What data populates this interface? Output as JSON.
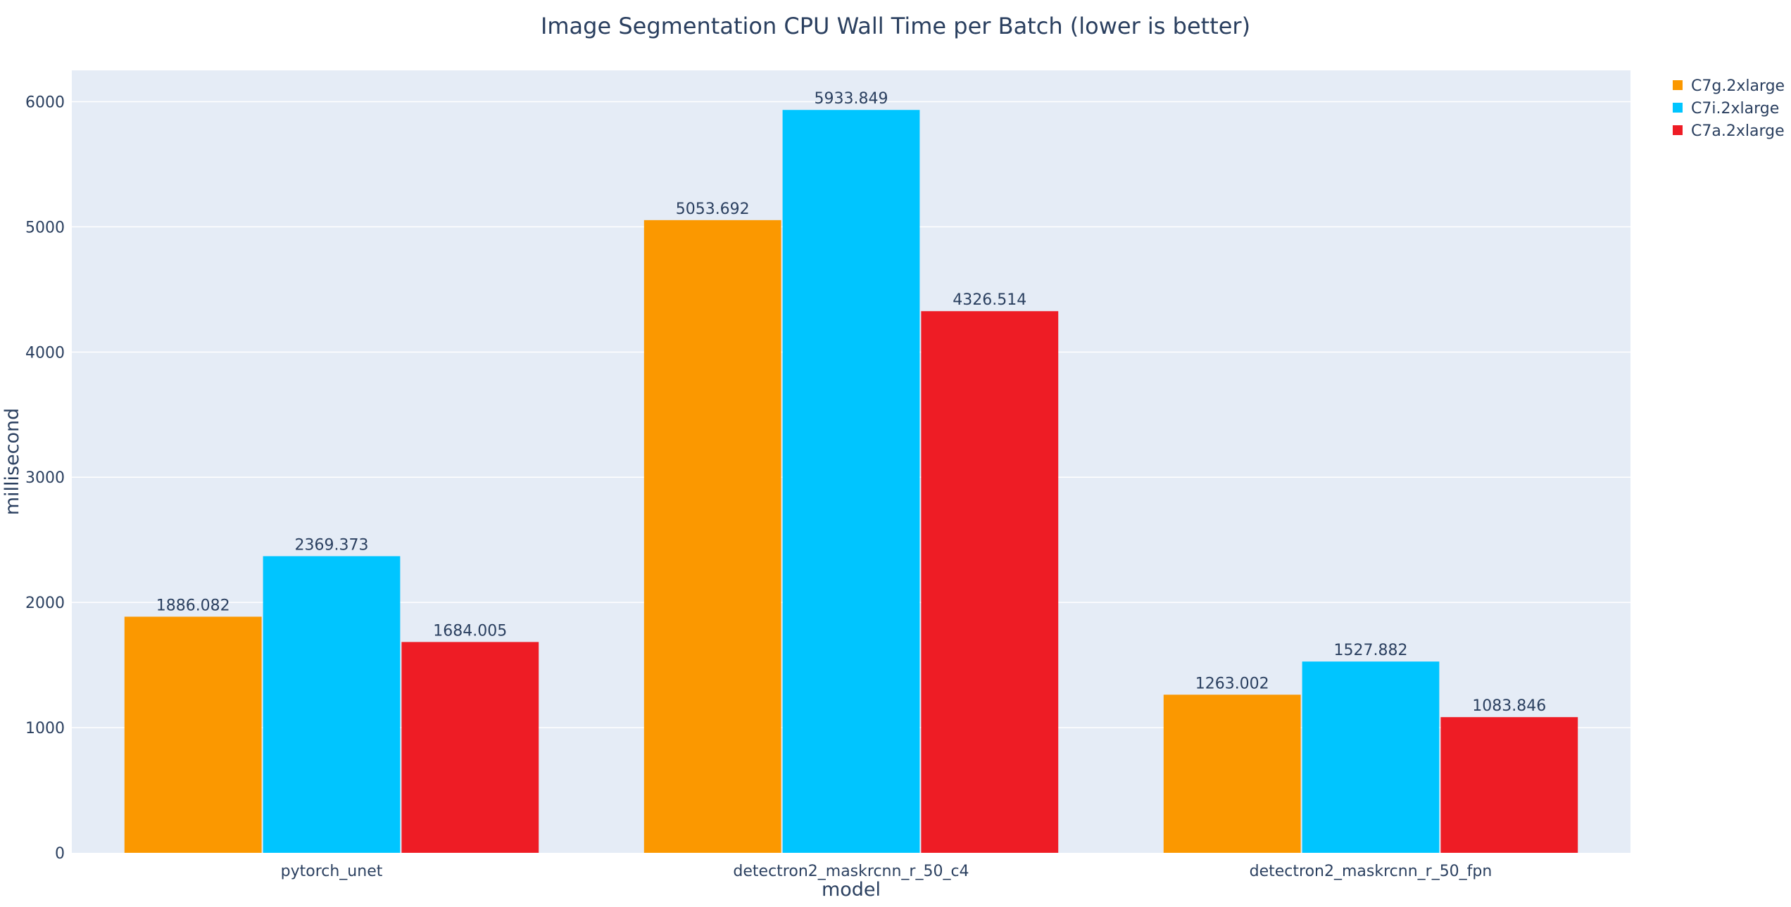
{
  "chart_data": {
    "type": "bar",
    "title": "Image Segmentation CPU Wall Time per Batch (lower is better)",
    "xlabel": "model",
    "ylabel": "millisecond",
    "categories": [
      "pytorch_unet",
      "detectron2_maskrcnn_r_50_c4",
      "detectron2_maskrcnn_r_50_fpn"
    ],
    "series": [
      {
        "name": "C7g.2xlarge",
        "color": "#fb9800",
        "values": [
          1886.082,
          5053.692,
          1263.002
        ]
      },
      {
        "name": "C7i.2xlarge",
        "color": "#00c5ff",
        "values": [
          2369.373,
          5933.849,
          1527.882
        ]
      },
      {
        "name": "C7a.2xlarge",
        "color": "#ee1c25",
        "values": [
          1684.005,
          4326.514,
          1083.846
        ]
      }
    ],
    "ylim": [
      0,
      6250
    ],
    "yticks": [
      0,
      1000,
      2000,
      3000,
      4000,
      5000,
      6000
    ],
    "grid": true,
    "legend": "top-right",
    "colors": {
      "plot_bg": "#e5ecf6",
      "grid": "#ffffff",
      "text": "#2a3f5f"
    }
  }
}
